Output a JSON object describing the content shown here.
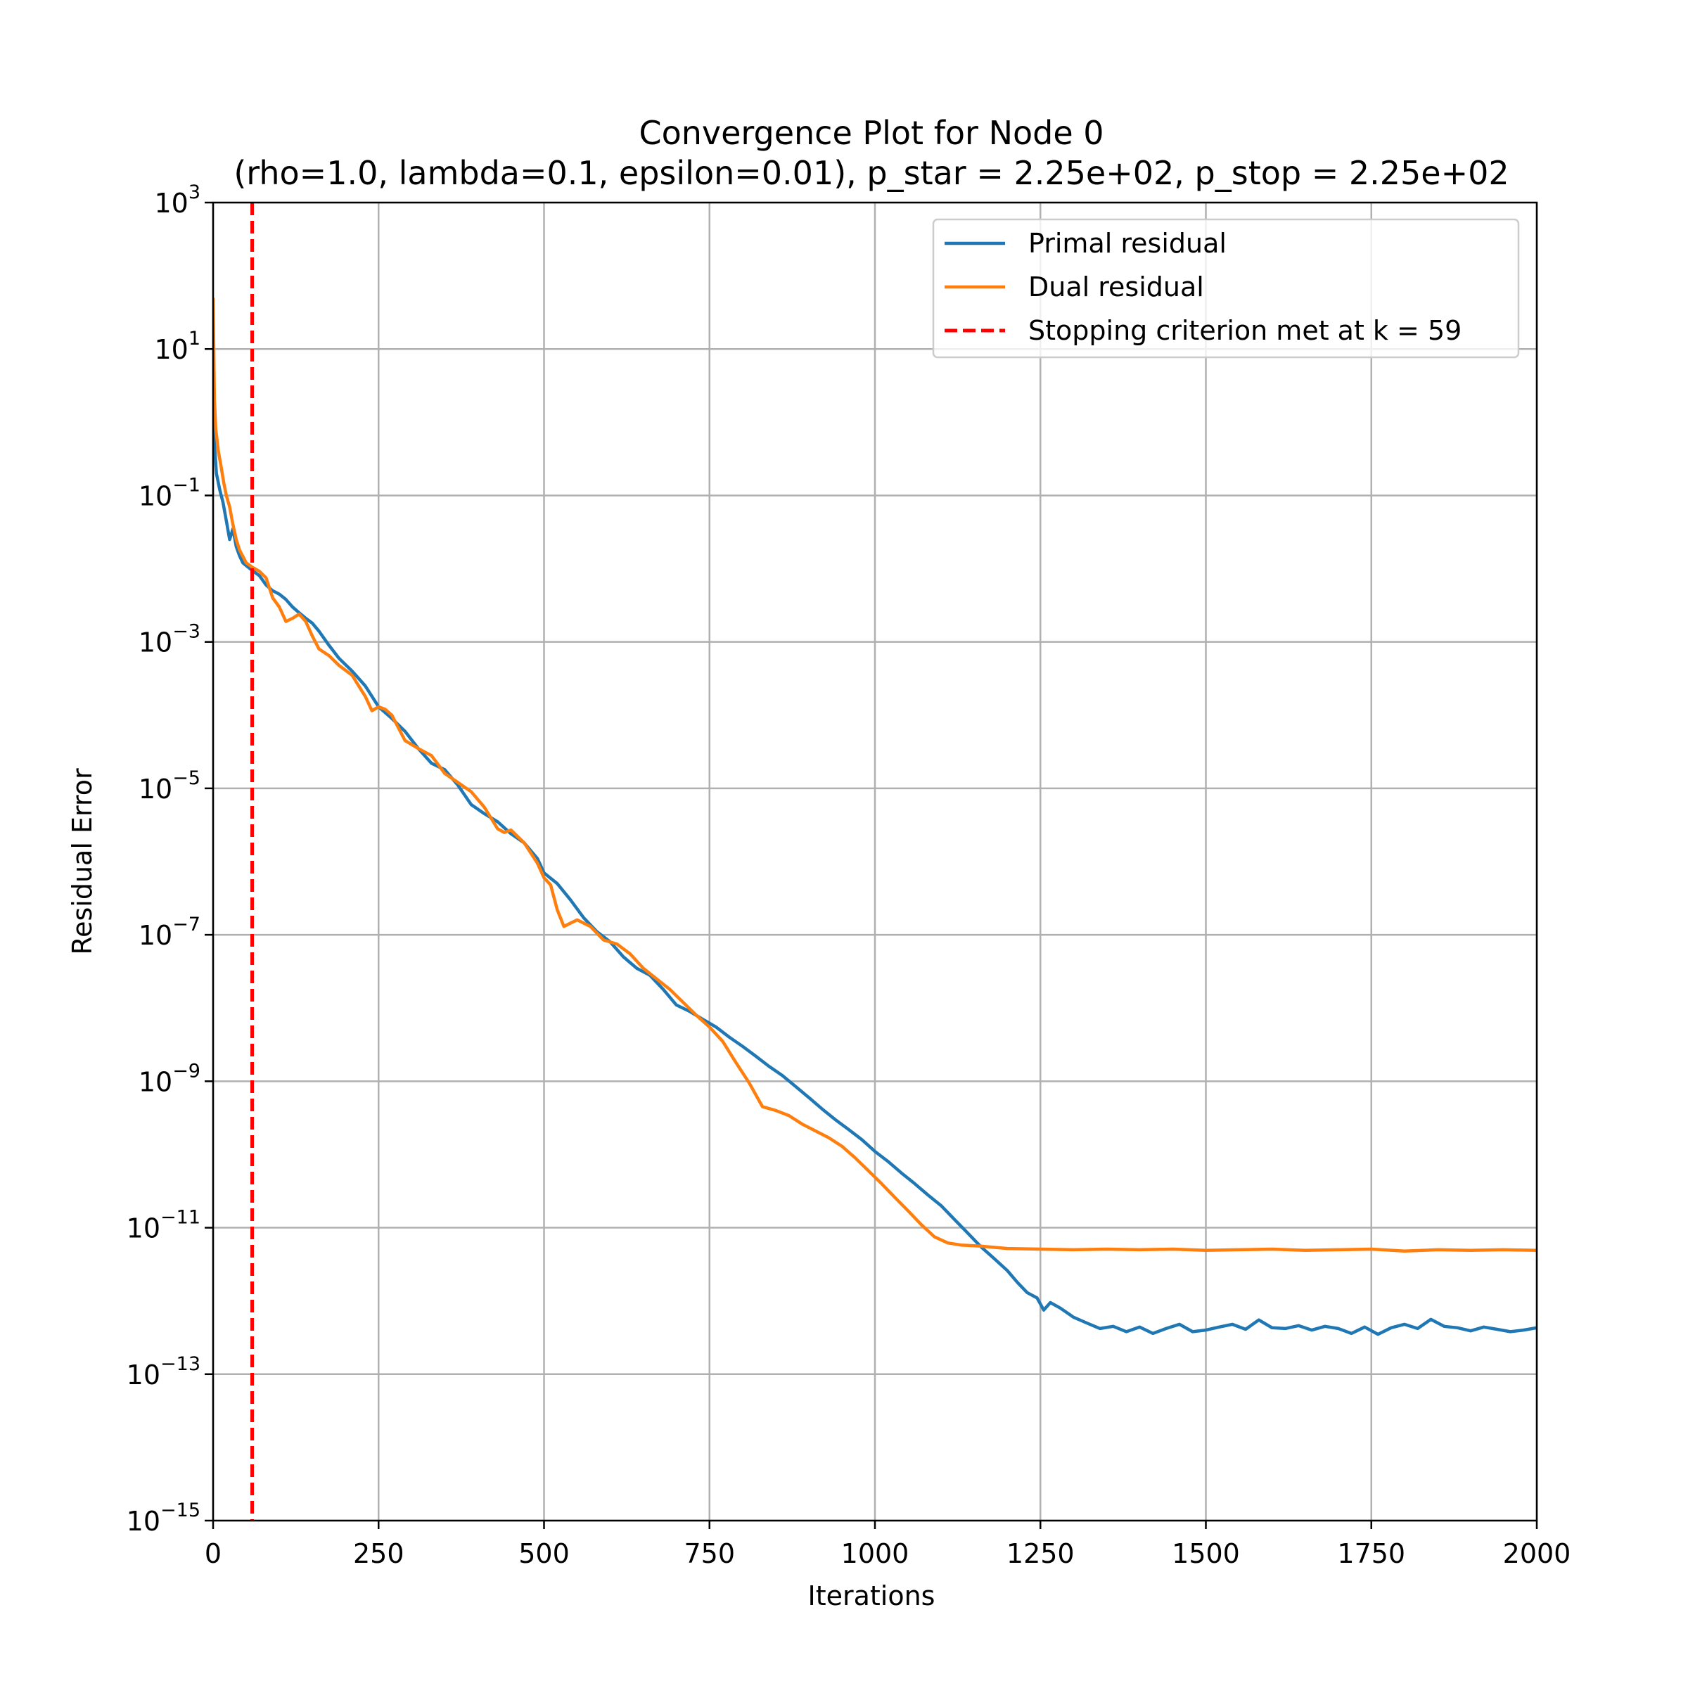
{
  "chart_data": {
    "type": "line",
    "title": "Convergence Plot for Node 0",
    "subtitle": "(rho=1.0, lambda=0.1, epsilon=0.01), p_star = 2.25e+02, p_stop = 2.25e+02",
    "xlabel": "Iterations",
    "ylabel": "Residual Error",
    "xlim": [
      0,
      2000
    ],
    "ylim": [
      1e-15,
      1000
    ],
    "yscale": "log",
    "grid": true,
    "legend_position": "top-right",
    "x_ticks": [
      "0",
      "250",
      "500",
      "750",
      "1000",
      "1250",
      "1500",
      "1750",
      "2000"
    ],
    "y_ticks": [
      {
        "base": "10",
        "exp": "3"
      },
      {
        "base": "10",
        "exp": "1"
      },
      {
        "base": "10",
        "exp": "−1"
      },
      {
        "base": "10",
        "exp": "−3"
      },
      {
        "base": "10",
        "exp": "−5"
      },
      {
        "base": "10",
        "exp": "−7"
      },
      {
        "base": "10",
        "exp": "−9"
      },
      {
        "base": "10",
        "exp": "−11"
      },
      {
        "base": "10",
        "exp": "−13"
      },
      {
        "base": "10",
        "exp": "−15"
      }
    ],
    "series": [
      {
        "name": "Primal residual",
        "color": "#1f77b4",
        "x": [
          0,
          2,
          5,
          10,
          15,
          20,
          25,
          30,
          35,
          40,
          45,
          50,
          59,
          70,
          80,
          90,
          100,
          110,
          120,
          130,
          140,
          150,
          160,
          175,
          190,
          210,
          230,
          250,
          270,
          290,
          310,
          330,
          350,
          370,
          390,
          410,
          430,
          450,
          470,
          490,
          500,
          520,
          540,
          560,
          580,
          600,
          620,
          640,
          660,
          680,
          700,
          720,
          740,
          760,
          780,
          800,
          820,
          840,
          860,
          880,
          900,
          920,
          940,
          960,
          980,
          1000,
          1020,
          1040,
          1060,
          1080,
          1100,
          1120,
          1140,
          1160,
          1180,
          1200,
          1215,
          1230,
          1245,
          1255,
          1265,
          1280,
          1300,
          1320,
          1340,
          1360,
          1380,
          1400,
          1420,
          1440,
          1460,
          1480,
          1500,
          1520,
          1540,
          1560,
          1580,
          1600,
          1620,
          1640,
          1660,
          1680,
          1700,
          1720,
          1740,
          1760,
          1780,
          1800,
          1820,
          1840,
          1860,
          1880,
          1900,
          1920,
          1940,
          1960,
          1980,
          2000
        ],
        "y": [
          3,
          0.5,
          0.2,
          0.12,
          0.08,
          0.045,
          0.025,
          0.035,
          0.02,
          0.015,
          0.012,
          0.011,
          0.0095,
          0.008,
          0.006,
          0.005,
          0.0045,
          0.0038,
          0.003,
          0.0025,
          0.0021,
          0.0018,
          0.0014,
          0.0009,
          0.0006,
          0.0004,
          0.00025,
          0.00013,
          9e-05,
          6e-05,
          3.5e-05,
          2.2e-05,
          1.8e-05,
          1.1e-05,
          6e-06,
          4.5e-06,
          3.5e-06,
          2.4e-06,
          1.8e-06,
          1.1e-06,
          7e-07,
          5e-07,
          3e-07,
          1.7e-07,
          1.1e-07,
          8e-08,
          5e-08,
          3.5e-08,
          2.8e-08,
          1.8e-08,
          1.1e-08,
          9e-09,
          7e-09,
          5.5e-09,
          4e-09,
          3e-09,
          2.2e-09,
          1.6e-09,
          1.2e-09,
          8.5e-10,
          6e-10,
          4.2e-10,
          3e-10,
          2.2e-10,
          1.6e-10,
          1.1e-10,
          8e-11,
          5.6e-11,
          4e-11,
          2.8e-11,
          2e-11,
          1.3e-11,
          8.5e-12,
          5.5e-12,
          3.8e-12,
          2.6e-12,
          1.8e-12,
          1.3e-12,
          1.1e-12,
          7.5e-13,
          9.5e-13,
          8e-13,
          6e-13,
          5e-13,
          4.2e-13,
          4.5e-13,
          3.8e-13,
          4.4e-13,
          3.6e-13,
          4.2e-13,
          4.8e-13,
          3.8e-13,
          4e-13,
          4.4e-13,
          4.8e-13,
          4.1e-13,
          5.5e-13,
          4.3e-13,
          4.2e-13,
          4.6e-13,
          4e-13,
          4.5e-13,
          4.2e-13,
          3.6e-13,
          4.4e-13,
          3.5e-13,
          4.3e-13,
          4.8e-13,
          4.2e-13,
          5.6e-13,
          4.5e-13,
          4.3e-13,
          3.9e-13,
          4.4e-13,
          4.1e-13,
          3.8e-13,
          4e-13,
          4.3e-13
        ]
      },
      {
        "name": "Dual residual",
        "color": "#ff7f0e",
        "x": [
          0,
          2,
          4,
          8,
          12,
          16,
          20,
          25,
          30,
          35,
          40,
          50,
          59,
          70,
          80,
          90,
          100,
          110,
          120,
          130,
          140,
          150,
          160,
          175,
          190,
          210,
          230,
          240,
          250,
          260,
          270,
          290,
          310,
          330,
          350,
          370,
          390,
          410,
          430,
          440,
          450,
          470,
          490,
          500,
          510,
          520,
          530,
          550,
          570,
          590,
          610,
          630,
          650,
          670,
          690,
          710,
          730,
          750,
          770,
          790,
          810,
          830,
          850,
          870,
          890,
          910,
          930,
          950,
          970,
          990,
          1010,
          1030,
          1050,
          1070,
          1090,
          1110,
          1130,
          1160,
          1200,
          1250,
          1300,
          1350,
          1400,
          1450,
          1500,
          1550,
          1600,
          1650,
          1700,
          1750,
          1800,
          1850,
          1900,
          1950,
          2000
        ],
        "y": [
          50,
          2,
          0.8,
          0.4,
          0.25,
          0.15,
          0.1,
          0.07,
          0.04,
          0.025,
          0.018,
          0.012,
          0.0105,
          0.0092,
          0.0075,
          0.004,
          0.003,
          0.0019,
          0.0021,
          0.0024,
          0.0019,
          0.0012,
          0.0008,
          0.00065,
          0.00048,
          0.00035,
          0.00018,
          0.000115,
          0.00013,
          0.00012,
          0.0001,
          4.5e-05,
          3.5e-05,
          2.8e-05,
          1.6e-05,
          1.2e-05,
          9e-06,
          5.5e-06,
          2.8e-06,
          2.5e-06,
          2.7e-06,
          1.8e-06,
          9.5e-07,
          6e-07,
          4.8e-07,
          2.2e-07,
          1.3e-07,
          1.6e-07,
          1.3e-07,
          8.5e-08,
          7.5e-08,
          5.5e-08,
          3.5e-08,
          2.5e-08,
          1.8e-08,
          1.2e-08,
          8e-09,
          5.5e-09,
          3.5e-09,
          1.8e-09,
          9.5e-10,
          4.5e-10,
          4e-10,
          3.4e-10,
          2.6e-10,
          2.1e-10,
          1.7e-10,
          1.3e-10,
          9e-11,
          6e-11,
          4e-11,
          2.6e-11,
          1.7e-11,
          1.1e-11,
          7.5e-12,
          6.2e-12,
          5.8e-12,
          5.6e-12,
          5.2e-12,
          5.1e-12,
          5e-12,
          5.1e-12,
          5e-12,
          5.1e-12,
          4.9e-12,
          5e-12,
          5.1e-12,
          4.9e-12,
          5e-12,
          5.1e-12,
          4.8e-12,
          5e-12,
          4.9e-12,
          5e-12,
          4.9e-12
        ]
      }
    ],
    "annotations": [
      {
        "type": "vline",
        "x": 59,
        "color": "#ff0000",
        "style": "dashed",
        "label": "Stopping criterion met at k = 59"
      }
    ]
  }
}
